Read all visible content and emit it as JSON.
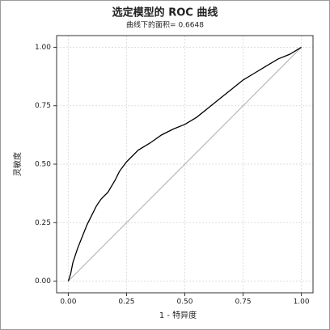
{
  "chart_data": {
    "type": "line",
    "title": "选定模型的 ROC 曲线",
    "subtitle": "曲线下的面积= 0.6648",
    "x_label": "1 - 特异度",
    "y_label": "灵敏度",
    "x": [
      0,
      0.01,
      0.02,
      0.04,
      0.06,
      0.08,
      0.1,
      0.12,
      0.14,
      0.17,
      0.2,
      0.22,
      0.25,
      0.3,
      0.35,
      0.4,
      0.45,
      0.5,
      0.55,
      0.6,
      0.65,
      0.7,
      0.75,
      0.8,
      0.85,
      0.9,
      0.95,
      1.0
    ],
    "values": [
      0,
      0.03,
      0.08,
      0.14,
      0.19,
      0.24,
      0.28,
      0.32,
      0.35,
      0.38,
      0.43,
      0.47,
      0.51,
      0.56,
      0.59,
      0.625,
      0.65,
      0.67,
      0.7,
      0.74,
      0.78,
      0.82,
      0.86,
      0.89,
      0.92,
      0.95,
      0.97,
      1.0
    ],
    "color": "#000000",
    "xlim": [
      -0.05,
      1.05
    ],
    "ylim": [
      -0.05,
      1.05
    ],
    "xticks": [
      {
        "value": 0,
        "label": "0.00"
      },
      {
        "value": 0.25,
        "label": "0.25"
      },
      {
        "value": 0.5,
        "label": "0.50"
      },
      {
        "value": 0.75,
        "label": "0.75"
      },
      {
        "value": 1,
        "label": "1.00"
      }
    ],
    "yticks": [
      {
        "value": 0,
        "label": "0.00"
      },
      {
        "value": 0.25,
        "label": "0.25"
      },
      {
        "value": 0.5,
        "label": "0.50"
      },
      {
        "value": 0.75,
        "label": "0.75"
      },
      {
        "value": 1,
        "label": "1.00"
      }
    ],
    "grid": true,
    "diagonal": true
  }
}
